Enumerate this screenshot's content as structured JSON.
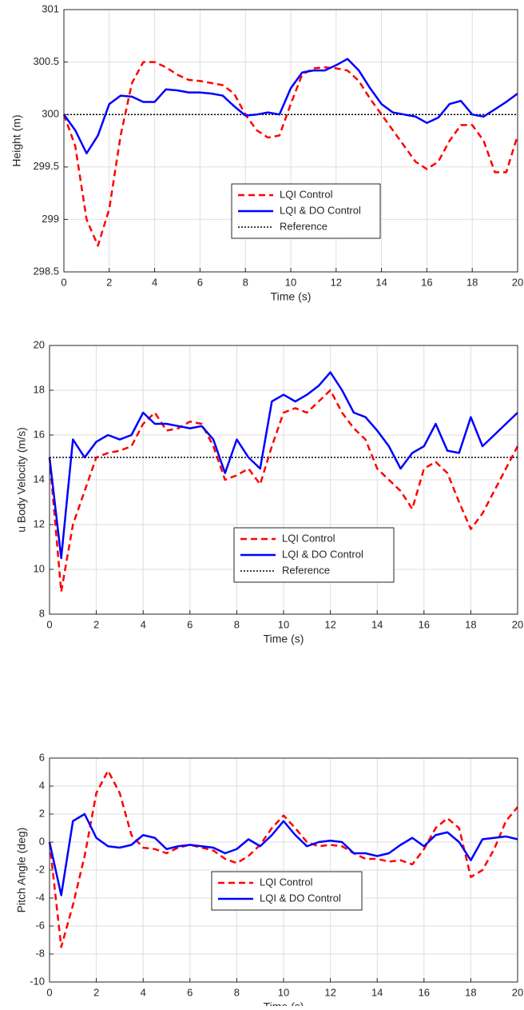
{
  "chart_data": [
    {
      "type": "line",
      "xlabel": "Time (s)",
      "ylabel": "Height (m)",
      "x": [
        0,
        0.5,
        1,
        1.5,
        2,
        2.5,
        3,
        3.5,
        4,
        4.5,
        5,
        5.5,
        6,
        6.5,
        7,
        7.5,
        8,
        8.5,
        9,
        9.5,
        10,
        10.5,
        11,
        11.5,
        12,
        12.5,
        13,
        13.5,
        14,
        14.5,
        15,
        15.5,
        16,
        16.5,
        17,
        17.5,
        18,
        18.5,
        19,
        19.5,
        20
      ],
      "series": [
        {
          "name": "LQI Control",
          "color": "#ff0000",
          "style": "dashed",
          "values": [
            300,
            299.7,
            299.0,
            298.75,
            299.1,
            299.8,
            300.3,
            300.5,
            300.5,
            300.45,
            300.38,
            300.33,
            300.32,
            300.3,
            300.28,
            300.2,
            300.0,
            299.85,
            299.78,
            299.8,
            300.1,
            300.38,
            300.44,
            300.45,
            300.44,
            300.42,
            300.32,
            300.15,
            300.0,
            299.85,
            299.7,
            299.55,
            299.48,
            299.55,
            299.75,
            299.9,
            299.9,
            299.75,
            299.45,
            299.45,
            299.8
          ]
        },
        {
          "name": "LQI & DO Control",
          "color": "#0000ff",
          "style": "solid",
          "values": [
            300,
            299.85,
            299.63,
            299.8,
            300.1,
            300.18,
            300.17,
            300.12,
            300.12,
            300.24,
            300.23,
            300.21,
            300.21,
            300.2,
            300.18,
            300.08,
            299.99,
            300.0,
            300.02,
            300.0,
            300.25,
            300.4,
            300.42,
            300.42,
            300.47,
            300.53,
            300.42,
            300.25,
            300.1,
            300.02,
            300.0,
            299.98,
            299.92,
            299.97,
            300.1,
            300.13,
            300.0,
            299.98,
            300.05,
            300.12,
            300.2
          ]
        }
      ],
      "reference": {
        "name": "Reference",
        "value": 300,
        "color": "#000000",
        "style": "dotted"
      },
      "xlim": [
        0,
        20
      ],
      "xticks": [
        0,
        2,
        4,
        6,
        8,
        10,
        12,
        14,
        16,
        18,
        20
      ],
      "ylim": [
        298.5,
        301
      ],
      "yticks": [
        298.5,
        299,
        299.5,
        300,
        300.5,
        301
      ],
      "grid": true
    },
    {
      "type": "line",
      "xlabel": "Time (s)",
      "ylabel": "u Body Velocity (m/s)",
      "x": [
        0,
        0.5,
        1,
        1.5,
        2,
        2.5,
        3,
        3.5,
        4,
        4.5,
        5,
        5.5,
        6,
        6.5,
        7,
        7.5,
        8,
        8.5,
        9,
        9.5,
        10,
        10.5,
        11,
        11.5,
        12,
        12.5,
        13,
        13.5,
        14,
        14.5,
        15,
        15.5,
        16,
        16.5,
        17,
        17.5,
        18,
        18.5,
        19,
        19.5,
        20
      ],
      "series": [
        {
          "name": "LQI Control",
          "color": "#ff0000",
          "style": "dashed",
          "values": [
            15,
            9,
            12,
            13.5,
            15,
            15.2,
            15.3,
            15.5,
            16.5,
            17,
            16.2,
            16.3,
            16.6,
            16.5,
            15.5,
            14,
            14.2,
            14.5,
            13.8,
            15.5,
            17,
            17.2,
            17,
            17.5,
            18,
            17,
            16.3,
            15.8,
            14.5,
            14,
            13.5,
            12.7,
            14.5,
            14.8,
            14.3,
            13,
            11.8,
            12.5,
            13.5,
            14.5,
            15.5
          ]
        },
        {
          "name": "LQI & DO Control",
          "color": "#0000ff",
          "style": "solid",
          "values": [
            15,
            10.5,
            15.8,
            15,
            15.7,
            16,
            15.8,
            16,
            17,
            16.5,
            16.5,
            16.4,
            16.3,
            16.4,
            15.8,
            14.3,
            15.8,
            15,
            14.5,
            17.5,
            17.8,
            17.5,
            17.8,
            18.2,
            18.8,
            18,
            17,
            16.8,
            16.2,
            15.5,
            14.5,
            15.2,
            15.5,
            16.5,
            15.3,
            15.2,
            16.8,
            15.5,
            16,
            16.5,
            17
          ]
        }
      ],
      "reference": {
        "name": "Reference",
        "value": 15,
        "color": "#000000",
        "style": "dotted"
      },
      "xlim": [
        0,
        20
      ],
      "xticks": [
        0,
        2,
        4,
        6,
        8,
        10,
        12,
        14,
        16,
        18,
        20
      ],
      "ylim": [
        8,
        20
      ],
      "yticks": [
        8,
        10,
        12,
        14,
        16,
        18,
        20
      ],
      "grid": true
    },
    {
      "type": "line",
      "xlabel": "Time (s)",
      "ylabel": "Pitch Angle (deg)",
      "x": [
        0,
        0.5,
        1,
        1.5,
        2,
        2.5,
        3,
        3.5,
        4,
        4.5,
        5,
        5.5,
        6,
        6.5,
        7,
        7.5,
        8,
        8.5,
        9,
        9.5,
        10,
        10.5,
        11,
        11.5,
        12,
        12.5,
        13,
        13.5,
        14,
        14.5,
        15,
        15.5,
        16,
        16.5,
        17,
        17.5,
        18,
        18.5,
        19,
        19.5,
        20
      ],
      "series": [
        {
          "name": "LQI Control",
          "color": "#ff0000",
          "style": "dashed",
          "values": [
            0,
            -7.5,
            -4.5,
            -1,
            3.5,
            5.1,
            3.5,
            0.5,
            -0.4,
            -0.5,
            -0.8,
            -0.4,
            -0.2,
            -0.4,
            -0.6,
            -1.2,
            -1.5,
            -1,
            -0.2,
            1,
            1.9,
            1,
            0,
            -0.3,
            -0.2,
            -0.3,
            -0.8,
            -1.2,
            -1.2,
            -1.4,
            -1.3,
            -1.6,
            -0.5,
            1,
            1.7,
            1,
            -2.5,
            -2,
            -0.5,
            1.5,
            2.5
          ]
        },
        {
          "name": "LQI & DO Control",
          "color": "#0000ff",
          "style": "solid",
          "values": [
            0,
            -3.8,
            1.5,
            2,
            0.3,
            -0.3,
            -0.4,
            -0.2,
            0.5,
            0.3,
            -0.5,
            -0.3,
            -0.2,
            -0.3,
            -0.4,
            -0.8,
            -0.5,
            0.2,
            -0.3,
            0.5,
            1.5,
            0.5,
            -0.3,
            0,
            0.1,
            0,
            -0.8,
            -0.8,
            -1,
            -0.8,
            -0.2,
            0.3,
            -0.3,
            0.5,
            0.7,
            0,
            -1.3,
            0.2,
            0.3,
            0.4,
            0.2
          ]
        }
      ],
      "xlim": [
        0,
        20
      ],
      "xticks": [
        0,
        2,
        4,
        6,
        8,
        10,
        12,
        14,
        16,
        18,
        20
      ],
      "ylim": [
        -10,
        6
      ],
      "yticks": [
        -10,
        -8,
        -6,
        -4,
        -2,
        0,
        2,
        4,
        6
      ],
      "grid": true
    }
  ]
}
